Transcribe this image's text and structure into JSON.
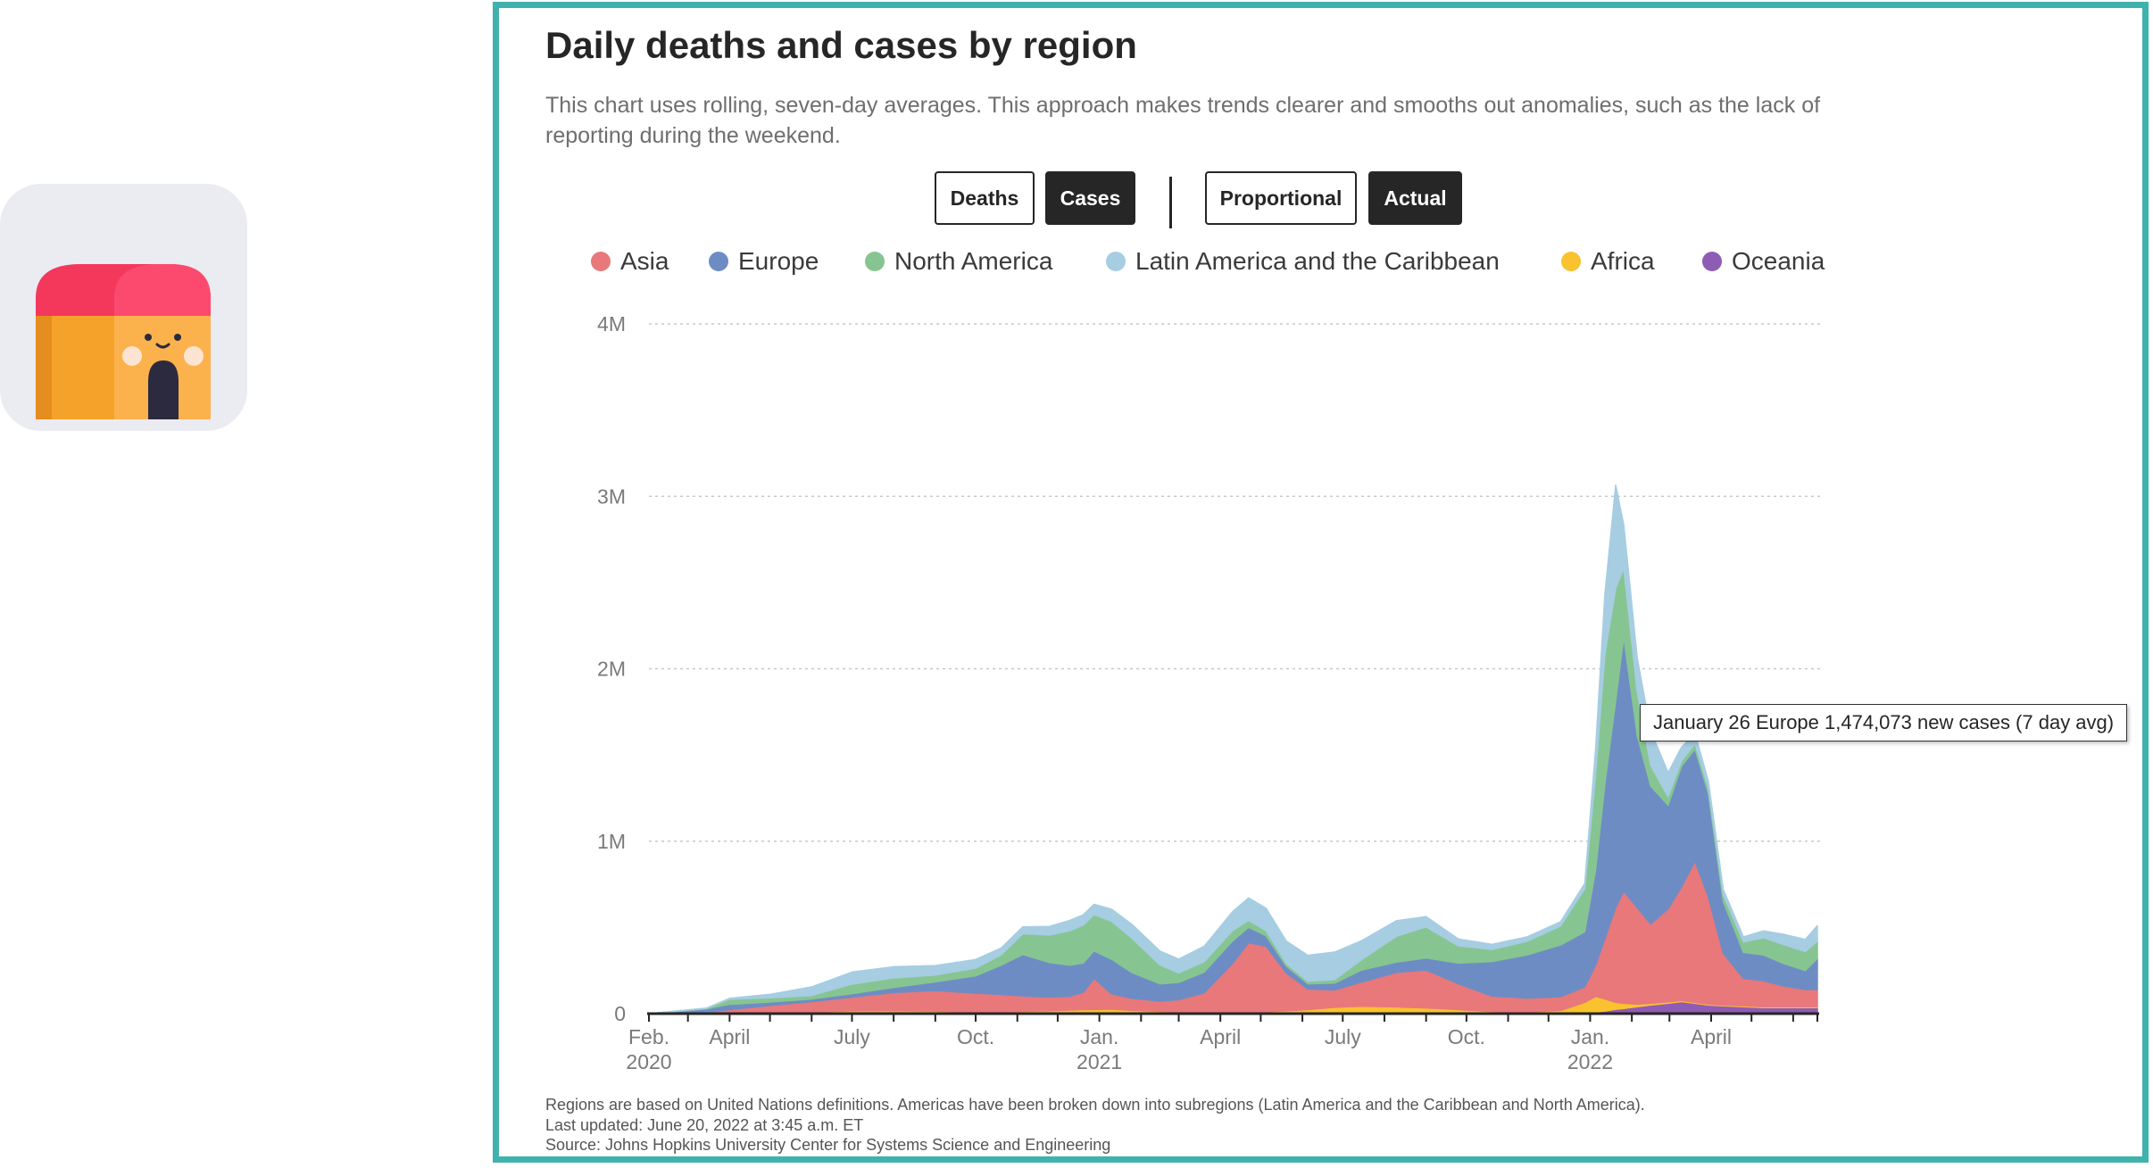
{
  "app_icon": {
    "icon": "house-face-icon"
  },
  "title": "Daily deaths and cases by region",
  "subtitle": "This chart uses rolling, seven-day averages. This approach makes trends clearer and smooths out anomalies, such as the lack of reporting during the weekend.",
  "toggles": {
    "metric": [
      {
        "label": "Deaths",
        "active": false
      },
      {
        "label": "Cases",
        "active": true
      }
    ],
    "scale": [
      {
        "label": "Proportional",
        "active": false
      },
      {
        "label": "Actual",
        "active": true
      }
    ]
  },
  "tooltip": "January 26 Europe 1,474,073 new cases (7 day avg)",
  "footnotes": [
    "Regions are based on United Nations definitions. Americas have been broken down into subregions (Latin America and the Caribbean and North America).",
    "Last updated: June 20, 2022 at 3:45 a.m. ET",
    "Source: Johns Hopkins University Center for Systems Science and Engineering"
  ],
  "chart_data": {
    "type": "area",
    "stacked": true,
    "ylim": [
      0,
      4000000
    ],
    "ytick_labels": [
      "0",
      "1M",
      "2M",
      "3M",
      "4M"
    ],
    "yticks": [
      0,
      1000000,
      2000000,
      3000000,
      4000000
    ],
    "grid": true,
    "legend_position": "top",
    "xlim": [
      "2020-02-01",
      "2022-06-19"
    ],
    "xticks": [
      {
        "date": "2020-02-01",
        "label": "Feb.",
        "year": "2020"
      },
      {
        "date": "2020-04-01",
        "label": "April",
        "year": ""
      },
      {
        "date": "2020-07-01",
        "label": "July",
        "year": ""
      },
      {
        "date": "2020-10-01",
        "label": "Oct.",
        "year": ""
      },
      {
        "date": "2021-01-01",
        "label": "Jan.",
        "year": "2021"
      },
      {
        "date": "2021-04-01",
        "label": "April",
        "year": ""
      },
      {
        "date": "2021-07-01",
        "label": "July",
        "year": ""
      },
      {
        "date": "2021-10-01",
        "label": "Oct.",
        "year": ""
      },
      {
        "date": "2022-01-01",
        "label": "Jan.",
        "year": "2022"
      },
      {
        "date": "2022-04-01",
        "label": "April",
        "year": ""
      }
    ],
    "dates": [
      "2020-02-01",
      "2020-03-15",
      "2020-04-01",
      "2020-05-01",
      "2020-06-01",
      "2020-07-01",
      "2020-08-01",
      "2020-09-01",
      "2020-10-01",
      "2020-10-20",
      "2020-11-05",
      "2020-11-25",
      "2020-12-10",
      "2020-12-20",
      "2020-12-28",
      "2021-01-10",
      "2021-01-25",
      "2021-02-15",
      "2021-03-01",
      "2021-03-20",
      "2021-04-10",
      "2021-04-22",
      "2021-05-05",
      "2021-05-20",
      "2021-06-05",
      "2021-06-25",
      "2021-07-15",
      "2021-08-10",
      "2021-09-01",
      "2021-09-25",
      "2021-10-20",
      "2021-11-15",
      "2021-12-10",
      "2021-12-28",
      "2022-01-05",
      "2022-01-12",
      "2022-01-20",
      "2022-01-26",
      "2022-02-05",
      "2022-02-15",
      "2022-02-28",
      "2022-03-10",
      "2022-03-20",
      "2022-03-30",
      "2022-04-10",
      "2022-04-25",
      "2022-05-10",
      "2022-05-25",
      "2022-06-10",
      "2022-06-19"
    ],
    "series": [
      {
        "name": "Oceania",
        "color": "#8e5bb5",
        "values": [
          0,
          0,
          1000,
          0,
          0,
          1000,
          2000,
          2000,
          1000,
          1000,
          1000,
          1000,
          1000,
          1000,
          1000,
          1000,
          1000,
          1000,
          1000,
          1000,
          1000,
          1000,
          1000,
          1000,
          1000,
          2000,
          3000,
          4000,
          3000,
          3000,
          2000,
          2000,
          3000,
          5000,
          10000,
          15000,
          25000,
          30000,
          40000,
          50000,
          60000,
          70000,
          60000,
          50000,
          45000,
          40000,
          35000,
          35000,
          35000,
          35000
        ]
      },
      {
        "name": "Africa",
        "color": "#f9c22e",
        "values": [
          0,
          500,
          3000,
          7000,
          10000,
          15000,
          15000,
          12000,
          8000,
          10000,
          12000,
          15000,
          20000,
          22000,
          23000,
          25000,
          18000,
          12000,
          10000,
          10000,
          10000,
          10000,
          10000,
          15000,
          22000,
          35000,
          40000,
          35000,
          30000,
          20000,
          10000,
          8000,
          15000,
          60000,
          90000,
          70000,
          40000,
          30000,
          15000,
          10000,
          8000,
          6000,
          5000,
          5000,
          5000,
          5000,
          5000,
          5000,
          5000,
          5000
        ]
      },
      {
        "name": "Asia",
        "color": "#e8787a",
        "values": [
          0,
          7000,
          20000,
          40000,
          60000,
          80000,
          105000,
          120000,
          110000,
          100000,
          90000,
          80000,
          80000,
          100000,
          180000,
          90000,
          70000,
          60000,
          70000,
          110000,
          280000,
          400000,
          380000,
          220000,
          120000,
          100000,
          140000,
          200000,
          220000,
          150000,
          90000,
          80000,
          80000,
          90000,
          180000,
          350000,
          550000,
          650000,
          560000,
          460000,
          540000,
          660000,
          820000,
          620000,
          300000,
          160000,
          150000,
          120000,
          100000,
          100000
        ]
      },
      {
        "name": "Europe",
        "color": "#6e8cc4",
        "values": [
          0,
          20000,
          30000,
          20000,
          15000,
          20000,
          30000,
          50000,
          100000,
          170000,
          240000,
          200000,
          180000,
          170000,
          160000,
          200000,
          150000,
          100000,
          100000,
          120000,
          130000,
          90000,
          60000,
          40000,
          30000,
          40000,
          70000,
          60000,
          70000,
          120000,
          200000,
          250000,
          300000,
          320000,
          550000,
          900000,
          1200000,
          1474073,
          1000000,
          800000,
          600000,
          700000,
          650000,
          600000,
          300000,
          150000,
          150000,
          130000,
          110000,
          180000
        ]
      },
      {
        "name": "North America",
        "color": "#86c591",
        "values": [
          0,
          3000,
          30000,
          25000,
          20000,
          55000,
          55000,
          40000,
          45000,
          60000,
          120000,
          160000,
          200000,
          220000,
          210000,
          220000,
          200000,
          110000,
          55000,
          60000,
          60000,
          40000,
          30000,
          15000,
          15000,
          20000,
          60000,
          150000,
          180000,
          100000,
          70000,
          80000,
          110000,
          250000,
          550000,
          750000,
          650000,
          400000,
          250000,
          120000,
          50000,
          30000,
          30000,
          30000,
          40000,
          60000,
          100000,
          110000,
          110000,
          100000
        ]
      },
      {
        "name": "Latin America and the Caribbean",
        "color": "#a6cde2",
        "values": [
          0,
          2000,
          5000,
          20000,
          50000,
          70000,
          65000,
          55000,
          50000,
          40000,
          40000,
          50000,
          60000,
          60000,
          60000,
          70000,
          80000,
          80000,
          80000,
          90000,
          110000,
          130000,
          130000,
          130000,
          150000,
          160000,
          110000,
          90000,
          60000,
          40000,
          30000,
          25000,
          25000,
          30000,
          150000,
          350000,
          600000,
          250000,
          200000,
          200000,
          140000,
          80000,
          60000,
          40000,
          30000,
          30000,
          40000,
          60000,
          70000,
          90000
        ]
      }
    ]
  }
}
